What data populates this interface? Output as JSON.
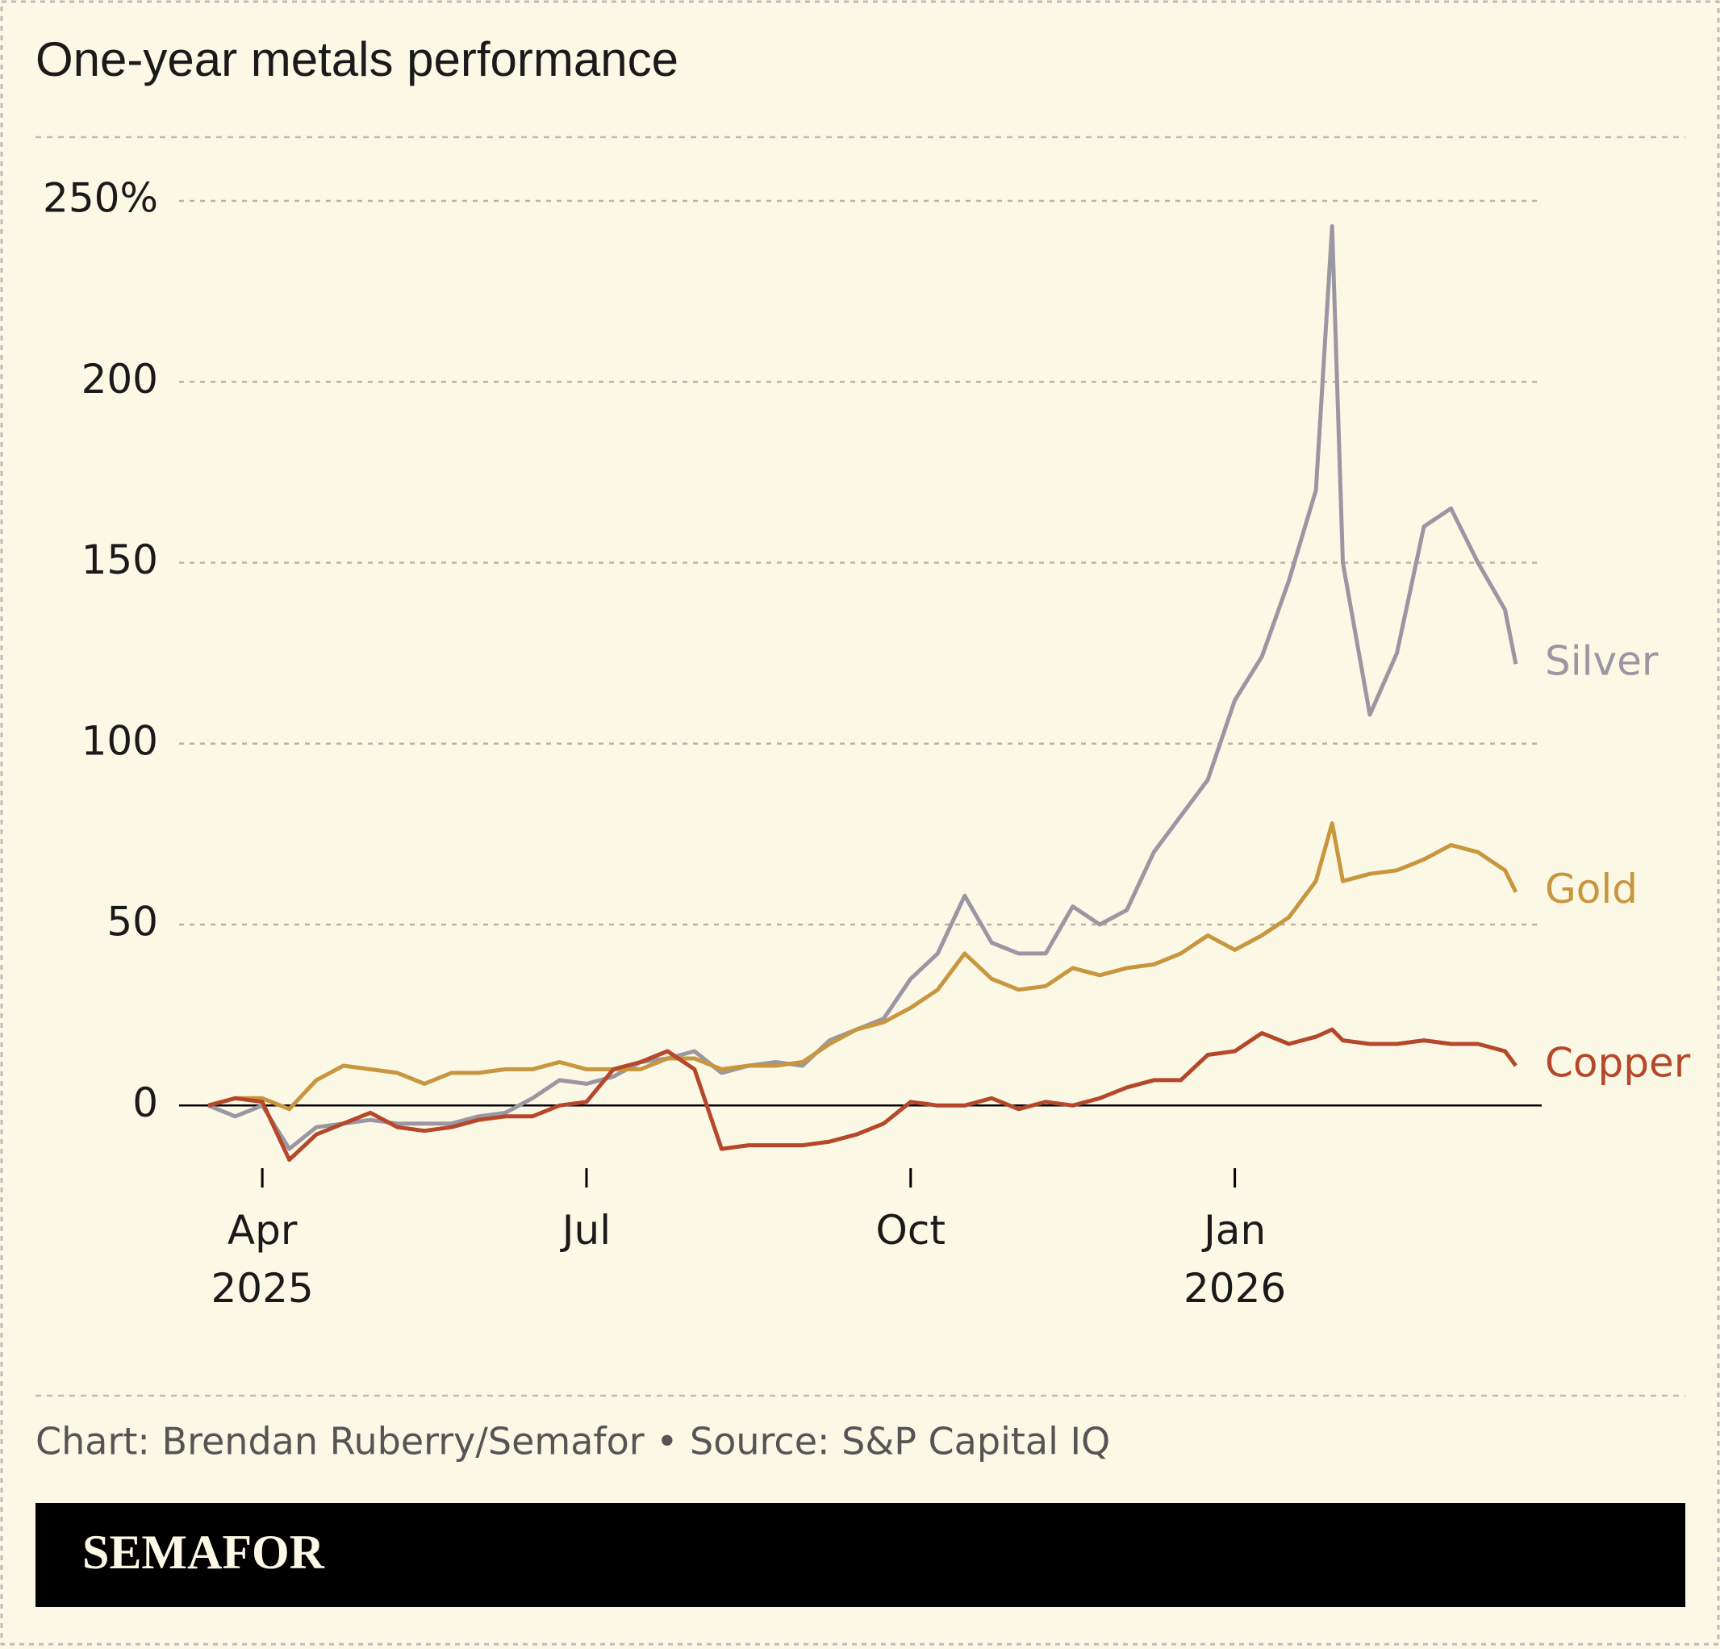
{
  "chart_data": {
    "type": "line",
    "title": "One-year metals performance",
    "source": "Chart: Brendan Ruberry/Semafor • Source: S&P Capital IQ",
    "brand": "SEMAFOR",
    "x": [
      -0.5,
      -0.25,
      0,
      0.25,
      0.5,
      0.75,
      1,
      1.25,
      1.5,
      1.75,
      2,
      2.25,
      2.5,
      2.75,
      3,
      3.25,
      3.5,
      3.75,
      4,
      4.25,
      4.5,
      4.75,
      5,
      5.25,
      5.5,
      5.75,
      6,
      6.25,
      6.5,
      6.75,
      7,
      7.25,
      7.5,
      7.75,
      8,
      8.25,
      8.5,
      8.75,
      9,
      9.25,
      9.5,
      9.75,
      9.9,
      10,
      10.25,
      10.5,
      10.75,
      11,
      11.25,
      11.5,
      11.6
    ],
    "xlim": [
      -0.77,
      11.84
    ],
    "xticks": [
      {
        "value": 0,
        "label": "Apr 2025"
      },
      {
        "value": 3,
        "label": "Jul"
      },
      {
        "value": 6,
        "label": "Oct"
      },
      {
        "value": 9,
        "label": "Jan 2026"
      }
    ],
    "ylim": [
      -20,
      250
    ],
    "yticks": [
      0,
      50,
      100,
      150,
      200,
      {
        "value": 250,
        "label": "250%"
      }
    ],
    "grid": true,
    "series": [
      {
        "name": "Silver",
        "color": "#9a97a3",
        "values": [
          0,
          -3,
          0,
          -12,
          -6,
          -5,
          -4,
          -5,
          -5,
          -5,
          -3,
          -2,
          2,
          7,
          6,
          8,
          12,
          13,
          15,
          9,
          11,
          12,
          11,
          18,
          21,
          24,
          35,
          42,
          58,
          45,
          42,
          42,
          55,
          50,
          54,
          70,
          80,
          90,
          112,
          124,
          145,
          170,
          243,
          150,
          108,
          125,
          160,
          165,
          150,
          137,
          122
        ]
      },
      {
        "name": "Gold",
        "color": "#c8963e",
        "values": [
          0,
          2,
          2,
          -1,
          7,
          11,
          10,
          9,
          6,
          9,
          9,
          10,
          10,
          12,
          10,
          10,
          10,
          13,
          13,
          10,
          11,
          11,
          12,
          17,
          21,
          23,
          27,
          32,
          42,
          35,
          32,
          33,
          38,
          36,
          38,
          39,
          42,
          47,
          43,
          47,
          52,
          62,
          78,
          62,
          64,
          65,
          68,
          72,
          70,
          65,
          59
        ]
      },
      {
        "name": "Copper",
        "color": "#b5482a",
        "values": [
          0,
          2,
          1,
          -15,
          -8,
          -5,
          -2,
          -6,
          -7,
          -6,
          -4,
          -3,
          -3,
          0,
          1,
          10,
          12,
          15,
          10,
          -12,
          -11,
          -11,
          -11,
          -10,
          -8,
          -5,
          1,
          0,
          0,
          2,
          -1,
          1,
          0,
          2,
          5,
          7,
          7,
          14,
          15,
          20,
          17,
          19,
          21,
          18,
          17,
          17,
          18,
          17,
          17,
          15,
          11
        ]
      }
    ]
  }
}
